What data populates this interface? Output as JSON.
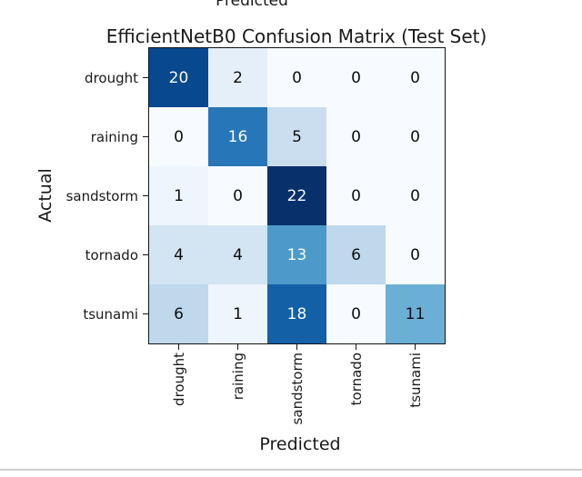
{
  "page": {
    "background": "#ffffff",
    "separator_color": "#d0d0d0",
    "top_clipped_label": "Predicted"
  },
  "chart_data": {
    "type": "heatmap",
    "title": "EfficientNetB0 Confusion Matrix (Test Set)",
    "xlabel": "Predicted",
    "ylabel": "Actual",
    "x_tick_labels": [
      "drought",
      "raining",
      "sandstorm",
      "tornado",
      "tsunami"
    ],
    "y_tick_labels": [
      "drought",
      "raining",
      "sandstorm",
      "tornado",
      "tsunami"
    ],
    "matrix": [
      [
        20,
        2,
        0,
        0,
        0
      ],
      [
        0,
        16,
        5,
        0,
        0
      ],
      [
        1,
        0,
        22,
        0,
        0
      ],
      [
        4,
        4,
        13,
        6,
        0
      ],
      [
        6,
        1,
        18,
        0,
        11
      ]
    ],
    "colormap": "Blues",
    "vmin": 0,
    "vmax": 22,
    "value_colors": {
      "0": "#f7fbff",
      "1": "#eef5fc",
      "2": "#e5eff9",
      "4": "#d3e4f3",
      "5": "#cadef0",
      "6": "#bfd8ec",
      "11": "#6baed6",
      "13": "#4d9aca",
      "16": "#2777b8",
      "18": "#1360a7",
      "20": "#08488f",
      "22": "#08306b"
    },
    "text_color_threshold": 11,
    "dark_text_color": "#0d0d0d",
    "light_text_color": "#f7fbff",
    "legend": "none",
    "grid": "off"
  }
}
